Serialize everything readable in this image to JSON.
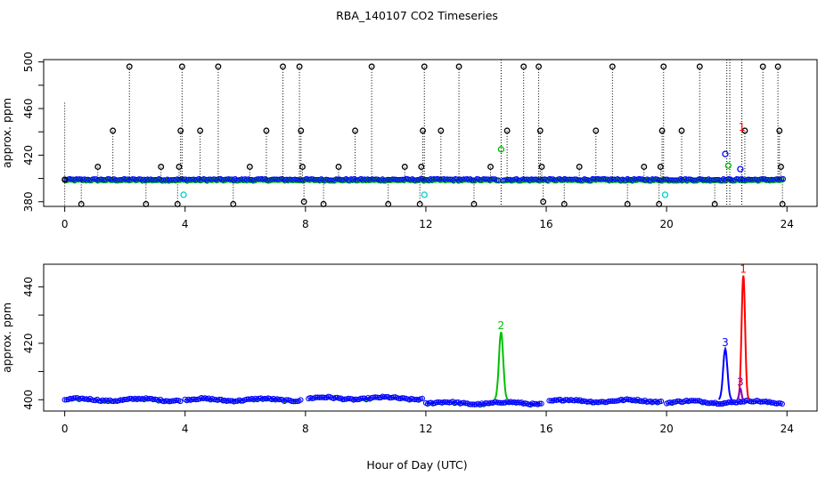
{
  "figure": {
    "title": "RBA_140107  CO2 Timeseries",
    "xlabel": "Hour of Day (UTC)"
  },
  "colors": {
    "black": "#000000",
    "blue": "#0000ff",
    "green": "#00c000",
    "cyan": "#00cccc",
    "red": "#ff0000",
    "purple": "#7f00bf"
  },
  "chart_data": [
    {
      "type": "scatter",
      "ylabel": "approx. ppm",
      "xlim": [
        -0.7,
        25
      ],
      "ylim": [
        376,
        502
      ],
      "xticks": [
        0,
        4,
        8,
        12,
        16,
        20,
        24
      ],
      "yticks": [
        380,
        420,
        460,
        500
      ],
      "yticks_minor": [
        400,
        440,
        480
      ],
      "baseline": 399,
      "series": [
        {
          "color": "black",
          "style": "drop",
          "points": [
            [
              0.0,
              399
            ],
            [
              0.55,
              378
            ],
            [
              1.1,
              410
            ],
            [
              1.6,
              441
            ],
            [
              2.15,
              496
            ],
            [
              2.7,
              378
            ],
            [
              3.2,
              410
            ],
            [
              3.75,
              378
            ],
            [
              3.8,
              410
            ],
            [
              3.85,
              441
            ],
            [
              3.9,
              496
            ],
            [
              4.5,
              441
            ],
            [
              5.1,
              496
            ],
            [
              5.6,
              378
            ],
            [
              6.15,
              410
            ],
            [
              6.7,
              441
            ],
            [
              7.25,
              496
            ],
            [
              7.8,
              496
            ],
            [
              7.85,
              441
            ],
            [
              7.9,
              410
            ],
            [
              7.95,
              380
            ],
            [
              8.6,
              378
            ],
            [
              9.1,
              410
            ],
            [
              9.65,
              441
            ],
            [
              10.2,
              496
            ],
            [
              10.75,
              378
            ],
            [
              11.3,
              410
            ],
            [
              11.8,
              378
            ],
            [
              11.85,
              410
            ],
            [
              11.9,
              441
            ],
            [
              11.95,
              496
            ],
            [
              12.5,
              441
            ],
            [
              13.1,
              496
            ],
            [
              13.6,
              378
            ],
            [
              14.15,
              410
            ],
            [
              14.7,
              441
            ],
            [
              15.25,
              496
            ],
            [
              15.75,
              496
            ],
            [
              15.8,
              441
            ],
            [
              15.85,
              410
            ],
            [
              15.9,
              380
            ],
            [
              16.6,
              378
            ],
            [
              17.1,
              410
            ],
            [
              17.65,
              441
            ],
            [
              18.2,
              496
            ],
            [
              18.7,
              378
            ],
            [
              19.25,
              410
            ],
            [
              19.75,
              378
            ],
            [
              19.8,
              410
            ],
            [
              19.85,
              441
            ],
            [
              19.9,
              496
            ],
            [
              20.5,
              441
            ],
            [
              21.1,
              496
            ],
            [
              21.6,
              378
            ],
            [
              22.6,
              441
            ],
            [
              23.2,
              496
            ],
            [
              23.7,
              496
            ],
            [
              23.75,
              441
            ],
            [
              23.8,
              410
            ],
            [
              23.85,
              378
            ]
          ]
        },
        {
          "color": "green",
          "style": "points",
          "points": [
            [
              14.5,
              425
            ],
            [
              22.05,
              411
            ]
          ]
        },
        {
          "color": "cyan",
          "style": "points",
          "points": [
            [
              3.95,
              386
            ],
            [
              11.95,
              386
            ],
            [
              19.95,
              386
            ]
          ]
        },
        {
          "color": "blue",
          "style": "points",
          "points": [
            [
              21.95,
              421
            ],
            [
              22.45,
              408
            ]
          ]
        }
      ],
      "labels": [
        {
          "x": 22.5,
          "y": 444,
          "text": "1",
          "color": "red"
        }
      ],
      "vlines": [
        14.5,
        22.0,
        22.1,
        22.5
      ]
    },
    {
      "type": "line",
      "ylabel": "approx. ppm",
      "xlim": [
        -0.7,
        25
      ],
      "ylim": [
        396,
        448
      ],
      "xticks": [
        0,
        4,
        8,
        12,
        16,
        20,
        24
      ],
      "yticks": [
        400,
        420,
        440
      ],
      "yticks_minor": [
        410,
        430
      ],
      "peaks": [
        {
          "label": "1",
          "color": "red",
          "x": 22.55,
          "value": 444,
          "width": 0.18
        },
        {
          "label": "2",
          "color": "green",
          "x": 14.5,
          "value": 424,
          "width": 0.22
        },
        {
          "label": "3",
          "color": "blue",
          "x": 21.95,
          "value": 418,
          "width": 0.22
        },
        {
          "label": "3",
          "color": "purple",
          "x": 22.45,
          "value": 404,
          "width": 0.12
        }
      ],
      "segments": [
        {
          "start": 0.0,
          "end": 3.85,
          "level": 400.0
        },
        {
          "start": 4.0,
          "end": 7.85,
          "level": 400.0
        },
        {
          "start": 8.1,
          "end": 11.9,
          "level": 400.5
        },
        {
          "start": 12.0,
          "end": 15.85,
          "level": 398.8
        },
        {
          "start": 16.1,
          "end": 19.85,
          "level": 399.6
        },
        {
          "start": 20.0,
          "end": 23.85,
          "level": 399.2
        }
      ]
    }
  ]
}
